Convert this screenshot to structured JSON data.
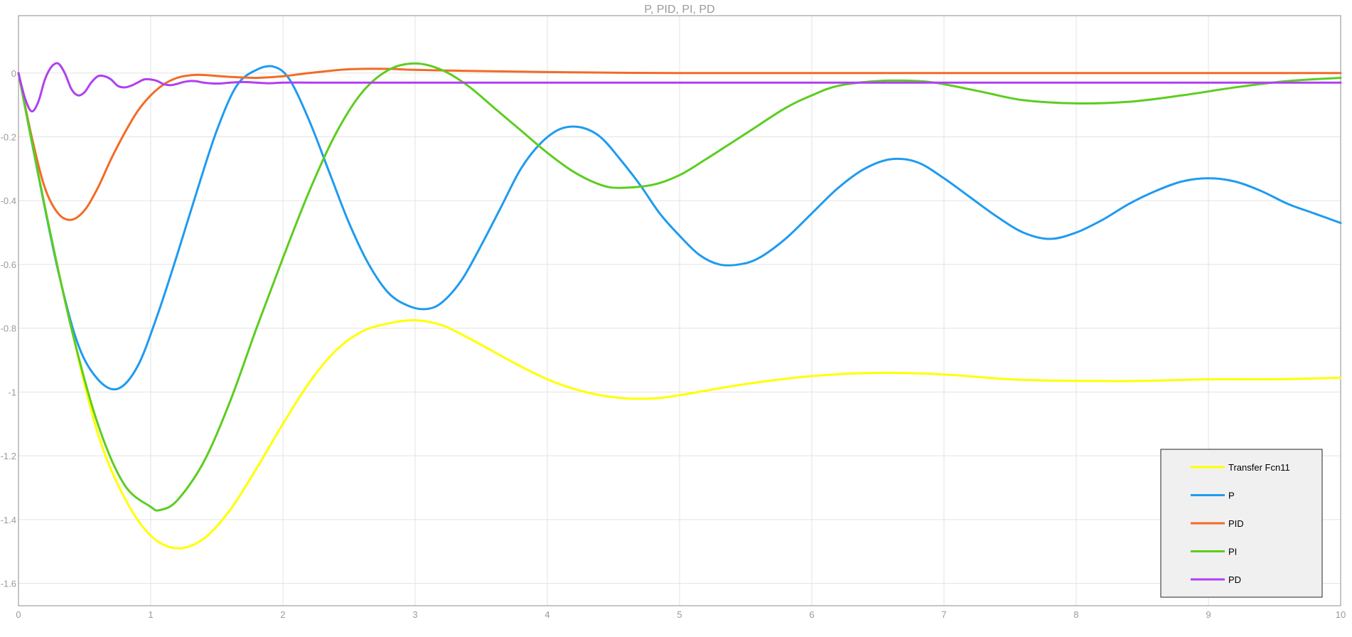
{
  "chart_data": {
    "type": "line",
    "title": "P, PID, PI, PD",
    "xlim": [
      0,
      10
    ],
    "ylim": [
      -1.67,
      0.18
    ],
    "xticks": [
      0,
      1,
      2,
      3,
      4,
      5,
      6,
      7,
      8,
      9,
      10
    ],
    "yticks": [
      0,
      -0.2,
      -0.4,
      -0.6,
      -0.8,
      -1,
      -1.2,
      -1.4,
      -1.6
    ],
    "xtick_labels": [
      "0",
      "1",
      "2",
      "3",
      "4",
      "5",
      "6",
      "7",
      "8",
      "9",
      "10"
    ],
    "ytick_labels": [
      "0",
      "-0.2",
      "-0.4",
      "-0.6",
      "-0.8",
      "-1",
      "-1.2",
      "-1.4",
      "-1.6"
    ],
    "grid": true,
    "legend_position": "bottom-right",
    "series": [
      {
        "name": "Transfer Fcn11",
        "color": "#ffff00",
        "x": [
          0,
          0.2,
          0.4,
          0.6,
          0.8,
          1.0,
          1.2,
          1.4,
          1.6,
          1.8,
          2.0,
          2.2,
          2.4,
          2.6,
          2.8,
          3.0,
          3.2,
          3.4,
          3.6,
          3.8,
          4.0,
          4.2,
          4.4,
          4.6,
          4.8,
          5.0,
          5.5,
          6.0,
          6.5,
          7.0,
          7.5,
          8.0,
          8.5,
          9.0,
          9.5,
          10.0
        ],
        "y": [
          0,
          -0.42,
          -0.8,
          -1.13,
          -1.33,
          -1.45,
          -1.49,
          -1.46,
          -1.37,
          -1.24,
          -1.1,
          -0.97,
          -0.87,
          -0.81,
          -0.785,
          -0.775,
          -0.79,
          -0.83,
          -0.875,
          -0.92,
          -0.96,
          -0.99,
          -1.01,
          -1.02,
          -1.02,
          -1.01,
          -0.975,
          -0.95,
          -0.94,
          -0.945,
          -0.96,
          -0.965,
          -0.965,
          -0.96,
          -0.96,
          -0.955
        ]
      },
      {
        "name": "P",
        "color": "#1e9bf0",
        "x": [
          0,
          0.15,
          0.3,
          0.45,
          0.6,
          0.75,
          0.9,
          1.05,
          1.2,
          1.35,
          1.5,
          1.65,
          1.8,
          1.93,
          2.05,
          2.2,
          2.35,
          2.5,
          2.65,
          2.8,
          2.95,
          3.08,
          3.2,
          3.35,
          3.5,
          3.65,
          3.8,
          3.95,
          4.1,
          4.25,
          4.4,
          4.55,
          4.7,
          4.85,
          5.0,
          5.15,
          5.3,
          5.45,
          5.6,
          5.8,
          6.0,
          6.2,
          6.4,
          6.6,
          6.8,
          7.0,
          7.2,
          7.4,
          7.6,
          7.8,
          8.0,
          8.2,
          8.4,
          8.6,
          8.8,
          9.0,
          9.2,
          9.4,
          9.6,
          9.8,
          10.0
        ],
        "y": [
          0,
          -0.32,
          -0.62,
          -0.85,
          -0.96,
          -0.99,
          -0.92,
          -0.76,
          -0.57,
          -0.37,
          -0.18,
          -0.04,
          0.01,
          0.02,
          -0.02,
          -0.15,
          -0.31,
          -0.47,
          -0.6,
          -0.69,
          -0.73,
          -0.74,
          -0.72,
          -0.65,
          -0.54,
          -0.42,
          -0.3,
          -0.22,
          -0.175,
          -0.17,
          -0.2,
          -0.27,
          -0.35,
          -0.44,
          -0.51,
          -0.57,
          -0.6,
          -0.6,
          -0.58,
          -0.52,
          -0.44,
          -0.36,
          -0.3,
          -0.27,
          -0.28,
          -0.33,
          -0.39,
          -0.45,
          -0.5,
          -0.52,
          -0.5,
          -0.46,
          -0.41,
          -0.37,
          -0.34,
          -0.33,
          -0.34,
          -0.37,
          -0.41,
          -0.44,
          -0.47
        ]
      },
      {
        "name": "PID",
        "color": "#f26b26",
        "x": [
          0,
          0.1,
          0.2,
          0.3,
          0.4,
          0.5,
          0.6,
          0.7,
          0.8,
          0.9,
          1.0,
          1.1,
          1.2,
          1.3,
          1.4,
          1.6,
          1.8,
          2.0,
          2.2,
          2.5,
          2.8,
          3.0,
          3.5,
          4.0,
          4.5,
          5.0,
          6.0,
          7.0,
          8.0,
          9.0,
          10.0
        ],
        "y": [
          0,
          -0.2,
          -0.36,
          -0.44,
          -0.46,
          -0.43,
          -0.36,
          -0.27,
          -0.19,
          -0.12,
          -0.07,
          -0.035,
          -0.015,
          -0.007,
          -0.006,
          -0.012,
          -0.015,
          -0.01,
          0.0,
          0.012,
          0.013,
          0.01,
          0.006,
          0.003,
          0.001,
          0.0,
          0.0,
          0.0,
          0.0,
          0.0,
          0.0
        ]
      },
      {
        "name": "PI",
        "color": "#5ccd1f",
        "x": [
          0,
          0.2,
          0.4,
          0.6,
          0.8,
          1.0,
          1.07,
          1.2,
          1.4,
          1.6,
          1.8,
          2.0,
          2.2,
          2.4,
          2.6,
          2.8,
          3.0,
          3.2,
          3.4,
          3.6,
          3.8,
          4.0,
          4.2,
          4.4,
          4.55,
          4.8,
          5.0,
          5.2,
          5.5,
          5.8,
          6.0,
          6.2,
          6.5,
          6.8,
          7.0,
          7.3,
          7.6,
          8.0,
          8.4,
          8.8,
          9.2,
          9.6,
          10.0
        ],
        "y": [
          0,
          -0.42,
          -0.8,
          -1.1,
          -1.29,
          -1.36,
          -1.37,
          -1.34,
          -1.22,
          -1.03,
          -0.8,
          -0.58,
          -0.37,
          -0.19,
          -0.06,
          0.01,
          0.03,
          0.01,
          -0.04,
          -0.11,
          -0.18,
          -0.25,
          -0.31,
          -0.35,
          -0.36,
          -0.35,
          -0.32,
          -0.27,
          -0.19,
          -0.11,
          -0.07,
          -0.04,
          -0.025,
          -0.025,
          -0.035,
          -0.06,
          -0.085,
          -0.095,
          -0.09,
          -0.07,
          -0.045,
          -0.025,
          -0.015
        ]
      },
      {
        "name": "PD",
        "color": "#b040f0",
        "x": [
          0,
          0.05,
          0.1,
          0.15,
          0.2,
          0.25,
          0.3,
          0.35,
          0.4,
          0.45,
          0.5,
          0.55,
          0.6,
          0.65,
          0.7,
          0.75,
          0.8,
          0.85,
          0.9,
          0.95,
          1.0,
          1.05,
          1.1,
          1.15,
          1.2,
          1.25,
          1.3,
          1.35,
          1.4,
          1.5,
          1.6,
          1.7,
          1.8,
          1.9,
          2.0,
          2.2,
          2.4,
          2.6,
          2.8,
          3.0,
          3.5,
          4.0,
          4.5,
          5.0,
          5.5,
          6.0,
          6.5,
          7.0,
          7.5,
          8.0,
          8.5,
          9.0,
          9.5,
          10.0
        ],
        "y": [
          0,
          -0.08,
          -0.12,
          -0.09,
          -0.02,
          0.02,
          0.03,
          0.0,
          -0.05,
          -0.07,
          -0.06,
          -0.03,
          -0.01,
          -0.01,
          -0.02,
          -0.04,
          -0.045,
          -0.04,
          -0.03,
          -0.02,
          -0.02,
          -0.025,
          -0.035,
          -0.038,
          -0.034,
          -0.028,
          -0.025,
          -0.026,
          -0.03,
          -0.033,
          -0.03,
          -0.028,
          -0.03,
          -0.032,
          -0.03,
          -0.03,
          -0.03,
          -0.03,
          -0.03,
          -0.03,
          -0.03,
          -0.03,
          -0.03,
          -0.03,
          -0.03,
          -0.03,
          -0.03,
          -0.03,
          -0.03,
          -0.03,
          -0.03,
          -0.03,
          -0.03,
          -0.03
        ]
      }
    ]
  }
}
